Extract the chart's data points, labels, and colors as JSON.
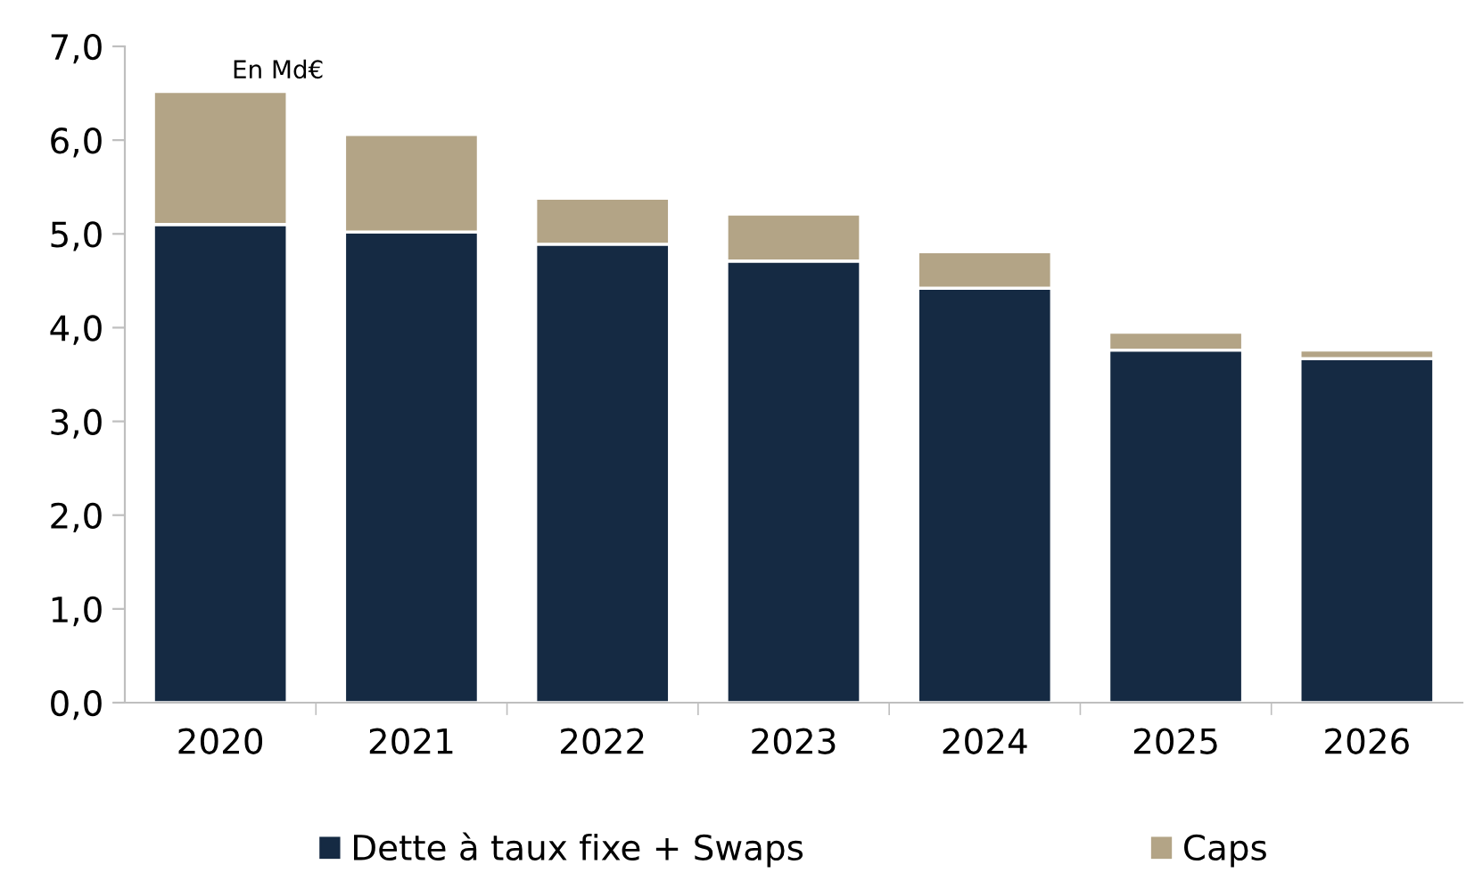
{
  "chart_data": {
    "type": "bar",
    "stacked": true,
    "annotations": [
      "En Md€"
    ],
    "categories": [
      "2020",
      "2021",
      "2022",
      "2023",
      "2024",
      "2025",
      "2026"
    ],
    "series": [
      {
        "name": "Dette à taux fixe + Swaps",
        "color": "#152a43",
        "values": [
          5.1,
          5.02,
          4.89,
          4.71,
          4.42,
          3.76,
          3.67
        ]
      },
      {
        "name": "Caps",
        "color": "#b3a486",
        "values": [
          1.42,
          1.04,
          0.49,
          0.5,
          0.39,
          0.19,
          0.09
        ]
      }
    ],
    "ylim": [
      0,
      7
    ],
    "yticks": [
      {
        "value": 0,
        "label": "0,0"
      },
      {
        "value": 1,
        "label": "1,0"
      },
      {
        "value": 2,
        "label": "2,0"
      },
      {
        "value": 3,
        "label": "3,0"
      },
      {
        "value": 4,
        "label": "4,0"
      },
      {
        "value": 5,
        "label": "5,0"
      },
      {
        "value": 6,
        "label": "6,0"
      },
      {
        "value": 7,
        "label": "7,0"
      }
    ],
    "grid": false,
    "legend": "bottom"
  }
}
